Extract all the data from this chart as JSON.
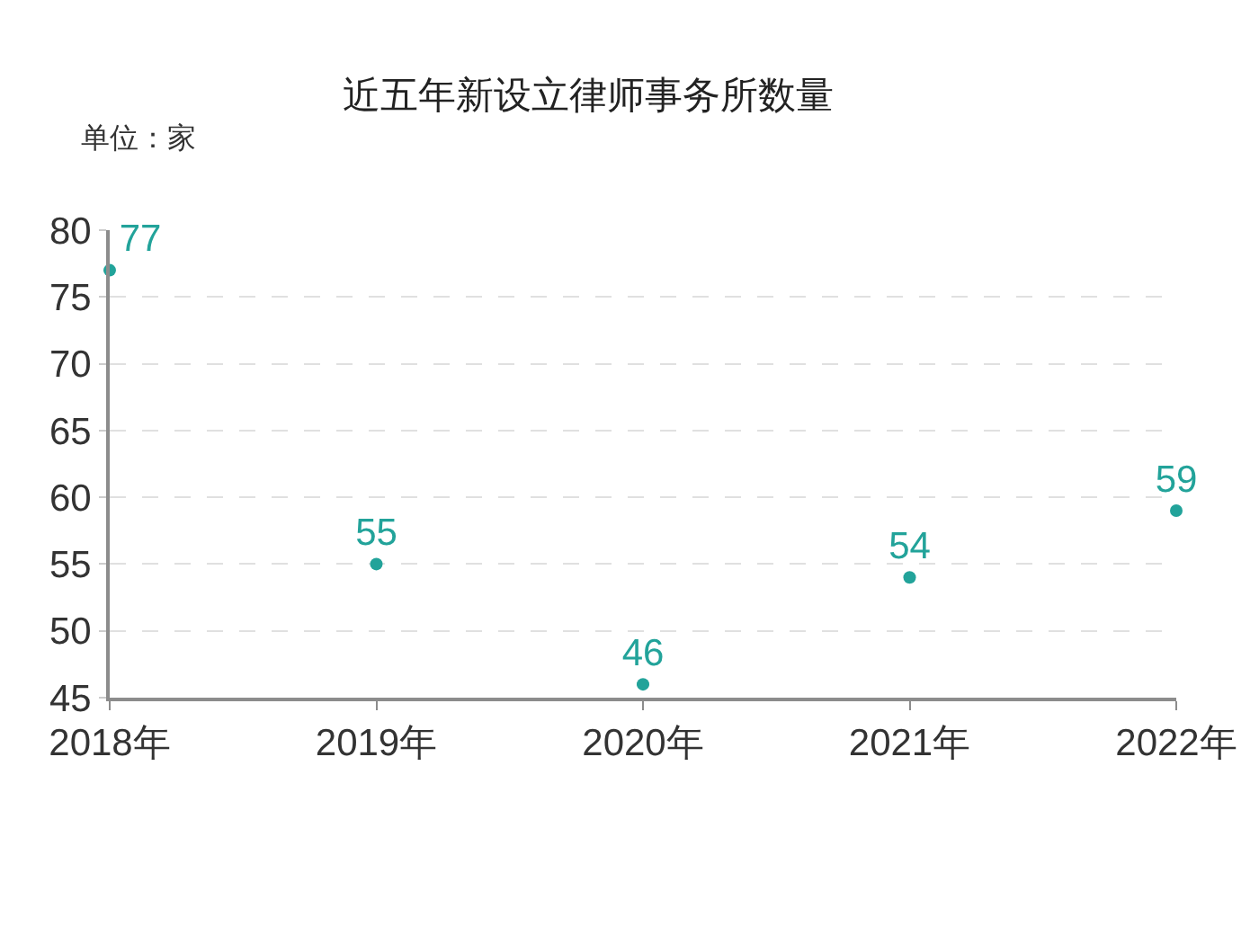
{
  "chart_data": {
    "type": "scatter",
    "title": "近五年新设立律师事务所数量",
    "ylabel": "单位：家",
    "categories": [
      "2018年",
      "2019年",
      "2020年",
      "2021年",
      "2022年"
    ],
    "series": [
      {
        "color": "#22a39a",
        "values": [
          77,
          55,
          46,
          54,
          59
        ]
      }
    ],
    "ylim": [
      45,
      80
    ],
    "yticks": [
      45,
      50,
      55,
      60,
      65,
      70,
      75,
      80
    ],
    "grid": "y",
    "marker": "circle",
    "data_labels": true
  }
}
